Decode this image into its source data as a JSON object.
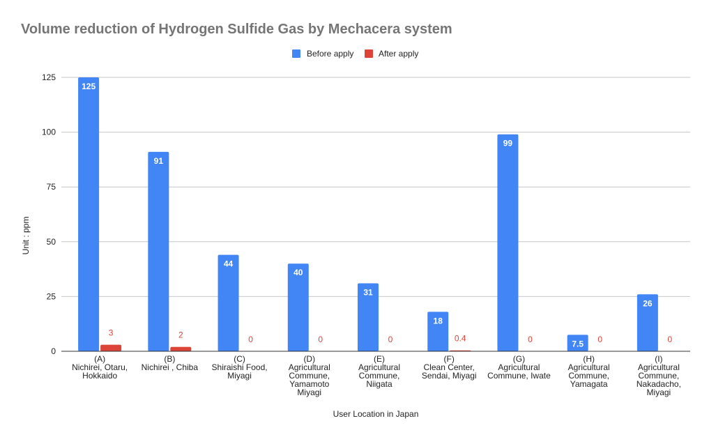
{
  "chart_data": {
    "type": "bar",
    "title": "Volume reduction of Hydrogen Sulfide Gas by Mechacera system",
    "xlabel": "User Location in Japan",
    "ylabel": "Unit : ppm",
    "ylim": [
      0,
      125
    ],
    "yticks": [
      0,
      25,
      50,
      75,
      100,
      125
    ],
    "grid": true,
    "legend_position": "top",
    "categories": [
      [
        "(A)",
        "Nichirei, Otaru,",
        "Hokkaido"
      ],
      [
        "(B)",
        "Nichirei , Chiba"
      ],
      [
        "(C)",
        "Shiraishi Food,",
        "Miyagi"
      ],
      [
        "(D)",
        "Agricultural",
        "Commune,",
        "Yamamoto",
        "Miyagi"
      ],
      [
        "(E)",
        "Agricultural",
        "Commune,",
        "Niigata"
      ],
      [
        "(F)",
        "Clean Center,",
        "Sendai, Miyagi"
      ],
      [
        "(G)",
        "Agricultural",
        "Commune, Iwate"
      ],
      [
        "(H)",
        "Agricultural",
        "Commune,",
        "Yamagata"
      ],
      [
        "(I)",
        "Agricultural",
        "Commune,",
        "Nakadacho,",
        "Miyagi"
      ]
    ],
    "series": [
      {
        "name": "Before apply",
        "color": "#4285f4",
        "values": [
          125,
          91,
          44,
          40,
          31,
          18,
          99,
          7.5,
          26
        ],
        "labels": [
          "125",
          "91",
          "44",
          "40",
          "31",
          "18",
          "99",
          "7.5",
          "26"
        ]
      },
      {
        "name": "After apply",
        "color": "#db4437",
        "values": [
          3,
          2,
          0,
          0,
          0,
          0.4,
          0,
          0,
          0
        ],
        "labels": [
          "3",
          "2",
          "0",
          "0",
          "0",
          "0.4",
          "0",
          "0",
          "0"
        ]
      }
    ]
  }
}
